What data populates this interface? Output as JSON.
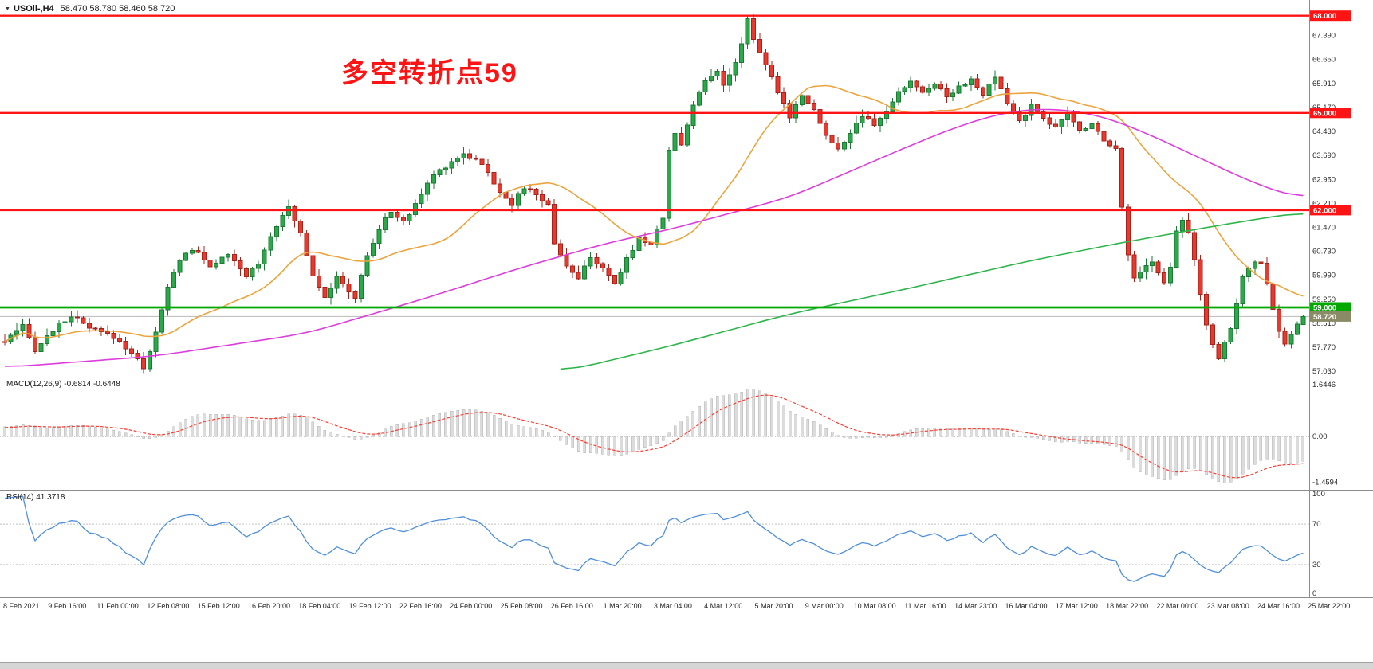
{
  "header": {
    "dropdown_icon": "▼",
    "symbol_period": "USOil-,H4",
    "ohlc_text": "58.470 58.780 58.460 58.720"
  },
  "annotation": {
    "text": "多空转折点59"
  },
  "panels": {
    "macd_label": "MACD(12,26,9) -0.6814 -0.6448",
    "rsi_label": "RSI(14) 41.3718"
  },
  "colors": {
    "up": "#2aa84a",
    "up_border": "#1b7a33",
    "down": "#e8392e",
    "down_border": "#a8221a",
    "ma_fast": "#eda33b",
    "ma_mid": "#dd3ddd",
    "ma_slow": "#2db54b",
    "hline_red": "#fe1414",
    "hline_green": "#00a800",
    "current_tag": "#8a8a66",
    "macd_bar": "#dcdcdc",
    "macd_bar_border": "#b6b6b6",
    "macd_signal": "#ff3b30",
    "rsi_line": "#4f8fdd",
    "axis_text": "#2b2b2b",
    "separator": "#8c8c8c"
  },
  "chart_data": {
    "type": "candlestick",
    "title": "USOil- H4",
    "timeframe": "H4",
    "num_candles": 216,
    "price_axis": {
      "min": 57.03,
      "step": 0.74,
      "labels": 15,
      "visible_range": [
        56.9,
        68.14
      ]
    },
    "horizontal_lines": [
      {
        "price": 68.0,
        "label": "68.000",
        "color": "red"
      },
      {
        "price": 65.0,
        "label": "65.000",
        "color": "red"
      },
      {
        "price": 62.0,
        "label": "62.000",
        "color": "red"
      },
      {
        "price": 59.0,
        "label": "59.000",
        "color": "green"
      }
    ],
    "current_price": {
      "price": 58.72,
      "label": "58.720"
    },
    "last_candle_ohlc": [
      58.47,
      58.78,
      58.46,
      58.72
    ],
    "close_anchors": [
      [
        0,
        57.95
      ],
      [
        3,
        58.4
      ],
      [
        5,
        57.7
      ],
      [
        8,
        58.3
      ],
      [
        11,
        58.75
      ],
      [
        14,
        58.35
      ],
      [
        18,
        58.1
      ],
      [
        21,
        57.6
      ],
      [
        23,
        57.15
      ],
      [
        25,
        58.2
      ],
      [
        27,
        59.6
      ],
      [
        29,
        60.5
      ],
      [
        31,
        60.8
      ],
      [
        34,
        60.3
      ],
      [
        37,
        60.6
      ],
      [
        40,
        59.95
      ],
      [
        42,
        60.4
      ],
      [
        44,
        61.2
      ],
      [
        46,
        61.9
      ],
      [
        47,
        62.05
      ],
      [
        49,
        61.3
      ],
      [
        51,
        60.0
      ],
      [
        53,
        59.35
      ],
      [
        55,
        59.9
      ],
      [
        57,
        59.5
      ],
      [
        58,
        59.3
      ],
      [
        60,
        60.6
      ],
      [
        62,
        61.4
      ],
      [
        64,
        62.0
      ],
      [
        66,
        61.6
      ],
      [
        68,
        62.2
      ],
      [
        71,
        63.1
      ],
      [
        74,
        63.5
      ],
      [
        76,
        63.75
      ],
      [
        79,
        63.45
      ],
      [
        81,
        62.8
      ],
      [
        84,
        62.2
      ],
      [
        86,
        62.7
      ],
      [
        88,
        62.5
      ],
      [
        90,
        62.15
      ],
      [
        91,
        61.0
      ],
      [
        93,
        60.3
      ],
      [
        95,
        59.85
      ],
      [
        97,
        60.6
      ],
      [
        99,
        60.15
      ],
      [
        101,
        59.7
      ],
      [
        103,
        60.5
      ],
      [
        105,
        61.15
      ],
      [
        107,
        60.95
      ],
      [
        109,
        61.8
      ],
      [
        110,
        63.9
      ],
      [
        111,
        64.35
      ],
      [
        112,
        64.0
      ],
      [
        114,
        65.3
      ],
      [
        116,
        65.95
      ],
      [
        118,
        66.35
      ],
      [
        119,
        65.9
      ],
      [
        121,
        66.5
      ],
      [
        122,
        67.2
      ],
      [
        123,
        67.9
      ],
      [
        124,
        67.3
      ],
      [
        126,
        66.5
      ],
      [
        128,
        65.6
      ],
      [
        130,
        64.9
      ],
      [
        132,
        65.6
      ],
      [
        134,
        65.1
      ],
      [
        136,
        64.3
      ],
      [
        138,
        63.85
      ],
      [
        140,
        64.4
      ],
      [
        142,
        64.9
      ],
      [
        144,
        64.6
      ],
      [
        146,
        65.05
      ],
      [
        148,
        65.6
      ],
      [
        150,
        66.0
      ],
      [
        152,
        65.6
      ],
      [
        154,
        65.95
      ],
      [
        156,
        65.5
      ],
      [
        158,
        65.85
      ],
      [
        160,
        66.0
      ],
      [
        162,
        65.55
      ],
      [
        164,
        66.1
      ],
      [
        166,
        65.3
      ],
      [
        168,
        64.75
      ],
      [
        170,
        65.2
      ],
      [
        172,
        64.9
      ],
      [
        174,
        64.5
      ],
      [
        176,
        65.0
      ],
      [
        178,
        64.45
      ],
      [
        180,
        64.7
      ],
      [
        182,
        64.15
      ],
      [
        184,
        63.95
      ],
      [
        185,
        62.1
      ],
      [
        186,
        60.6
      ],
      [
        187,
        59.9
      ],
      [
        188,
        60.15
      ],
      [
        190,
        60.4
      ],
      [
        192,
        59.75
      ],
      [
        193,
        60.3
      ],
      [
        194,
        61.4
      ],
      [
        195,
        61.75
      ],
      [
        196,
        61.3
      ],
      [
        197,
        60.5
      ],
      [
        198,
        59.4
      ],
      [
        199,
        58.4
      ],
      [
        200,
        57.8
      ],
      [
        201,
        57.45
      ],
      [
        202,
        57.9
      ],
      [
        203,
        58.4
      ],
      [
        204,
        59.1
      ],
      [
        205,
        59.9
      ],
      [
        206,
        60.25
      ],
      [
        207,
        60.45
      ],
      [
        208,
        60.3
      ],
      [
        209,
        59.7
      ],
      [
        210,
        58.9
      ],
      [
        211,
        58.3
      ],
      [
        212,
        57.85
      ],
      [
        213,
        58.15
      ],
      [
        214,
        58.5
      ],
      [
        215,
        58.72
      ]
    ],
    "ma_fast_window": 24,
    "ma_mid_anchors": [
      [
        0,
        57.15
      ],
      [
        25,
        57.5
      ],
      [
        50,
        58.2
      ],
      [
        70,
        59.3
      ],
      [
        85,
        60.2
      ],
      [
        100,
        61.0
      ],
      [
        110,
        61.4
      ],
      [
        120,
        61.9
      ],
      [
        130,
        62.4
      ],
      [
        140,
        63.2
      ],
      [
        150,
        64.0
      ],
      [
        158,
        64.6
      ],
      [
        166,
        65.05
      ],
      [
        174,
        65.15
      ],
      [
        182,
        64.9
      ],
      [
        190,
        64.3
      ],
      [
        198,
        63.6
      ],
      [
        206,
        62.9
      ],
      [
        215,
        62.3
      ]
    ],
    "ma_slow_anchors": [
      [
        92,
        57.0
      ],
      [
        110,
        57.8
      ],
      [
        130,
        58.8
      ],
      [
        150,
        59.6
      ],
      [
        170,
        60.45
      ],
      [
        185,
        61.0
      ],
      [
        200,
        61.5
      ],
      [
        215,
        61.95
      ]
    ],
    "macd": {
      "params": [
        12,
        26,
        9
      ],
      "main": -0.6814,
      "signal": -0.6448,
      "axis_labels": [
        "1.6446",
        "0.00",
        "-1.4594"
      ],
      "axis_values": [
        1.6446,
        0,
        -1.4594
      ]
    },
    "rsi": {
      "period": 14,
      "value": 41.3718,
      "axis_labels": [
        "100",
        "70",
        "30",
        "0"
      ],
      "axis_values": [
        100,
        70,
        30,
        0
      ],
      "levels": [
        70,
        30
      ]
    },
    "time_labels": [
      "8 Feb 2021",
      "9 Feb 16:00",
      "11 Feb 00:00",
      "12 Feb 08:00",
      "15 Feb 12:00",
      "16 Feb 20:00",
      "18 Feb 04:00",
      "19 Feb 12:00",
      "22 Feb 16:00",
      "24 Feb 00:00",
      "25 Feb 08:00",
      "26 Feb 16:00",
      "1 Mar 20:00",
      "3 Mar 04:00",
      "4 Mar 12:00",
      "5 Mar 20:00",
      "9 Mar 00:00",
      "10 Mar 08:00",
      "11 Mar 16:00",
      "14 Mar 23:00",
      "16 Mar 04:00",
      "17 Mar 12:00",
      "18 Mar 22:00",
      "22 Mar 00:00",
      "23 Mar 08:00",
      "24 Mar 16:00",
      "25 Mar 22:00"
    ]
  }
}
